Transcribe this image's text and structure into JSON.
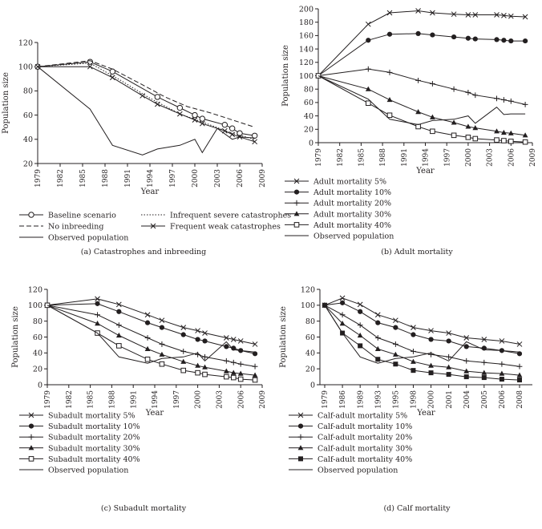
{
  "chart_data": [
    {
      "type": "line",
      "caption": "(a)  Catastrophes and inbreeding",
      "ylabel": "Population size",
      "xlabel": "Year",
      "ylim": [
        20,
        120
      ],
      "yticks": [
        20,
        40,
        60,
        80,
        100,
        120
      ],
      "xlim": [
        1979,
        2009
      ],
      "xticks": [
        "1979",
        "1982",
        "1985",
        "1988",
        "1991",
        "1994",
        "1997",
        "2000",
        "2003",
        "2006",
        "2009"
      ],
      "series": [
        {
          "name": "Baseline scenario",
          "style": "circle",
          "x": [
            1979,
            1986,
            1989,
            1995,
            1998,
            2000,
            2001,
            2004,
            2005,
            2006,
            2008
          ],
          "y": [
            100,
            104,
            96,
            75,
            66,
            60,
            57,
            52,
            49,
            45,
            43
          ]
        },
        {
          "name": "No inbreeding",
          "style": "dashed",
          "x": [
            1979,
            1986,
            1989,
            1993,
            1996,
            1999,
            2002,
            2005,
            2008
          ],
          "y": [
            100,
            105,
            98,
            85,
            75,
            67,
            62,
            56,
            50
          ]
        },
        {
          "name": "Observed population",
          "style": "solid",
          "x": [
            1979,
            1986,
            1989,
            1993,
            1995,
            1998,
            2000,
            2001,
            2003,
            2005,
            2006,
            2008
          ],
          "y": [
            100,
            65,
            35,
            27,
            32,
            35,
            40,
            29,
            49,
            40,
            42,
            41
          ]
        },
        {
          "name": "Infrequent severe catastrophes",
          "style": "dotted",
          "x": [
            1979,
            1986,
            1990,
            1994,
            1998,
            2002,
            2005,
            2008
          ],
          "y": [
            100,
            103,
            89,
            74,
            61,
            52,
            45,
            40
          ]
        },
        {
          "name": "Frequent weak catastrophes",
          "style": "cross",
          "x": [
            1979,
            1986,
            1989,
            1993,
            1995,
            1998,
            2000,
            2001,
            2004,
            2005,
            2006,
            2008
          ],
          "y": [
            100,
            100,
            91,
            76,
            69,
            61,
            56,
            53,
            47,
            44,
            42,
            38
          ]
        }
      ],
      "legend": [
        "Baseline scenario",
        "No inbreeding",
        "Observed population",
        "Infrequent severe catastrophes",
        "Frequent weak catastrophes"
      ]
    },
    {
      "type": "line",
      "caption": "(b)  Adult mortality",
      "ylabel": "Population size",
      "xlabel": "Year",
      "ylim": [
        0,
        200
      ],
      "yticks": [
        0,
        20,
        40,
        60,
        80,
        100,
        120,
        140,
        160,
        180,
        200
      ],
      "xlim": [
        1979,
        2009
      ],
      "xticks": [
        "1979",
        "1982",
        "1985",
        "1988",
        "1991",
        "1994",
        "1997",
        "2000",
        "2003",
        "2006",
        "2009"
      ],
      "series": [
        {
          "name": "Adult mortality 5%",
          "style": "cross",
          "x": [
            1979,
            1986,
            1989,
            1993,
            1995,
            1998,
            2000,
            2001,
            2004,
            2005,
            2006,
            2008
          ],
          "y": [
            100,
            177,
            194,
            197,
            194,
            192,
            191,
            191,
            191,
            190,
            189,
            188
          ]
        },
        {
          "name": "Adult mortality 10%",
          "style": "dot",
          "x": [
            1979,
            1986,
            1989,
            1993,
            1995,
            1998,
            2000,
            2001,
            2004,
            2005,
            2006,
            2008
          ],
          "y": [
            100,
            153,
            162,
            163,
            161,
            158,
            156,
            155,
            154,
            153,
            152,
            152
          ]
        },
        {
          "name": "Adult mortality 20%",
          "style": "plus",
          "x": [
            1979,
            1986,
            1989,
            1993,
            1995,
            1998,
            2000,
            2001,
            2004,
            2005,
            2006,
            2008
          ],
          "y": [
            100,
            110,
            105,
            93,
            88,
            80,
            75,
            71,
            66,
            64,
            62,
            57
          ]
        },
        {
          "name": "Adult mortality 30%",
          "style": "triangle",
          "x": [
            1979,
            1986,
            1989,
            1993,
            1995,
            1998,
            2000,
            2001,
            2004,
            2005,
            2006,
            2008
          ],
          "y": [
            100,
            80,
            64,
            46,
            38,
            30,
            24,
            22,
            17,
            15,
            14,
            11
          ]
        },
        {
          "name": "Adult mortality 40%",
          "style": "square",
          "x": [
            1979,
            1986,
            1989,
            1993,
            1995,
            1998,
            2000,
            2001,
            2004,
            2005,
            2006,
            2008
          ],
          "y": [
            100,
            59,
            41,
            24,
            17,
            11,
            8,
            6,
            4,
            3,
            2,
            1
          ]
        },
        {
          "name": "Observed population",
          "style": "solid",
          "x": [
            1979,
            1986,
            1989,
            1993,
            1995,
            1998,
            2000,
            2001,
            2004,
            2005,
            2006,
            2008
          ],
          "y": [
            100,
            65,
            35,
            27,
            33,
            35,
            40,
            29,
            53,
            42,
            43,
            43
          ]
        }
      ],
      "legend": [
        "Adult mortality 5%",
        "Adult mortality 10%",
        "Adult mortality 20%",
        "Adult mortality 30%",
        "Adult mortality 40%",
        "Observed population"
      ]
    },
    {
      "type": "line",
      "caption": "(c)  Subadult mortality",
      "ylabel": "Population size",
      "xlabel": "Year",
      "ylim": [
        0,
        120
      ],
      "yticks": [
        0,
        20,
        40,
        60,
        80,
        100,
        120
      ],
      "xlim": [
        1979,
        2009
      ],
      "xticks": [
        "1979",
        "1982",
        "1985",
        "1988",
        "1991",
        "1994",
        "1997",
        "2000",
        "2003",
        "2006",
        "2009"
      ],
      "series": [
        {
          "name": "Subadult mortality 5%",
          "style": "cross",
          "x": [
            1979,
            1986,
            1989,
            1993,
            1995,
            1998,
            2000,
            2001,
            2004,
            2005,
            2006,
            2008
          ],
          "y": [
            100,
            108,
            101,
            88,
            81,
            72,
            68,
            65,
            59,
            57,
            55,
            51
          ]
        },
        {
          "name": "Subadult mortality 10%",
          "style": "dot",
          "x": [
            1979,
            1986,
            1989,
            1993,
            1995,
            1998,
            2000,
            2001,
            2004,
            2005,
            2006,
            2008
          ],
          "y": [
            100,
            102,
            92,
            78,
            72,
            63,
            57,
            55,
            48,
            46,
            43,
            39
          ]
        },
        {
          "name": "Subadult mortality 20%",
          "style": "plus",
          "x": [
            1979,
            1986,
            1989,
            1993,
            1995,
            1998,
            2000,
            2001,
            2004,
            2005,
            2006,
            2008
          ],
          "y": [
            100,
            88,
            75,
            59,
            51,
            42,
            38,
            35,
            30,
            28,
            26,
            23
          ]
        },
        {
          "name": "Subadult mortality 30%",
          "style": "triangle",
          "x": [
            1979,
            1986,
            1989,
            1993,
            1995,
            1998,
            2000,
            2001,
            2004,
            2005,
            2006,
            2008
          ],
          "y": [
            100,
            77,
            62,
            45,
            38,
            29,
            24,
            22,
            17,
            15,
            14,
            12
          ]
        },
        {
          "name": "Subadult mortality 40%",
          "style": "square",
          "x": [
            1979,
            1986,
            1989,
            1993,
            1995,
            1998,
            2000,
            2001,
            2004,
            2005,
            2006,
            2008
          ],
          "y": [
            100,
            65,
            49,
            32,
            26,
            18,
            15,
            13,
            10,
            9,
            7,
            6
          ]
        },
        {
          "name": "Observed population",
          "style": "solid",
          "x": [
            1979,
            1986,
            1989,
            1993,
            1995,
            1998,
            2000,
            2001,
            2004,
            2005,
            2006,
            2008
          ],
          "y": [
            100,
            65,
            35,
            27,
            33,
            35,
            40,
            30,
            54,
            44,
            43,
            41
          ]
        }
      ],
      "legend": [
        "Subadult mortality 5%",
        "Subadult mortality 10%",
        "Subadult mortality 20%",
        "Subadult mortality 30%",
        "Subadult mortality 40%",
        "Observed population"
      ]
    },
    {
      "type": "line",
      "caption": "(d)  Calf mortality",
      "ylabel": "Population size",
      "xlabel": "Year",
      "ylim": [
        0,
        120
      ],
      "yticks": [
        0,
        20,
        40,
        60,
        80,
        100,
        120
      ],
      "xticks": [
        "1979",
        "1986",
        "1989",
        "1993",
        "1995",
        "1998",
        "2000",
        "2001",
        "2004",
        "2005",
        "2006",
        "2008"
      ],
      "series": [
        {
          "name": "Calf-adult mortality 5%",
          "style": "cross",
          "y": [
            100,
            109,
            101,
            88,
            81,
            72,
            68,
            65,
            59,
            57,
            55,
            51
          ]
        },
        {
          "name": "Calf-adult mortality 10%",
          "style": "dot",
          "y": [
            100,
            103,
            92,
            78,
            72,
            63,
            57,
            55,
            48,
            46,
            43,
            39
          ]
        },
        {
          "name": "Calf-adult mortality 20%",
          "style": "plus",
          "y": [
            100,
            88,
            75,
            59,
            51,
            42,
            38,
            35,
            30,
            28,
            26,
            23
          ]
        },
        {
          "name": "Calf-adult mortality 30%",
          "style": "triangle",
          "y": [
            100,
            77,
            62,
            45,
            38,
            29,
            24,
            22,
            17,
            15,
            14,
            12
          ]
        },
        {
          "name": "Calf-adult mortality 40%",
          "style": "filled-square",
          "y": [
            100,
            65,
            49,
            32,
            26,
            18,
            15,
            13,
            10,
            9,
            7,
            6
          ]
        },
        {
          "name": "Observed population",
          "style": "solid",
          "y": [
            100,
            65,
            35,
            27,
            33,
            35,
            40,
            30,
            54,
            44,
            43,
            41
          ]
        }
      ],
      "legend": [
        "Calf-adult mortality 5%",
        "Calf-adult mortality 10%",
        "Calf-adult mortality 20%",
        "Calf-adult mortality 30%",
        "Calf-adult mortality 40%",
        "Observed population"
      ]
    }
  ]
}
